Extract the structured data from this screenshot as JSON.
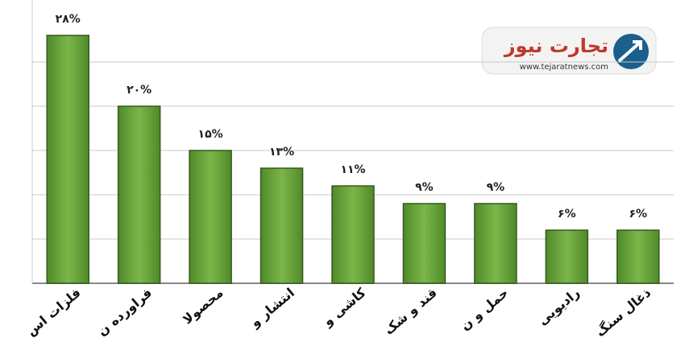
{
  "chart_data": {
    "type": "bar",
    "categories": [
      "فلزات اس",
      "فراورده ن",
      "محصولا",
      "انتشار و",
      "کاشی و",
      "قند و شک",
      "حمل و ن",
      "رادیویی",
      "ذغال سنگ"
    ],
    "values": [
      28,
      20,
      15,
      13,
      11,
      9,
      9,
      6,
      6
    ],
    "value_labels": [
      "۲۸%",
      "۲۰%",
      "۱۵%",
      "۱۳%",
      "۱۱%",
      "۹%",
      "۹%",
      "۶%",
      "۶%"
    ],
    "color": "#6aa33c",
    "ylim": [
      0,
      30
    ],
    "yticks": [
      0,
      5,
      10,
      15,
      20,
      25
    ],
    "grid": true
  },
  "logo": {
    "title": "تجارت نیوز",
    "url": "www.tejaratnews.com"
  }
}
